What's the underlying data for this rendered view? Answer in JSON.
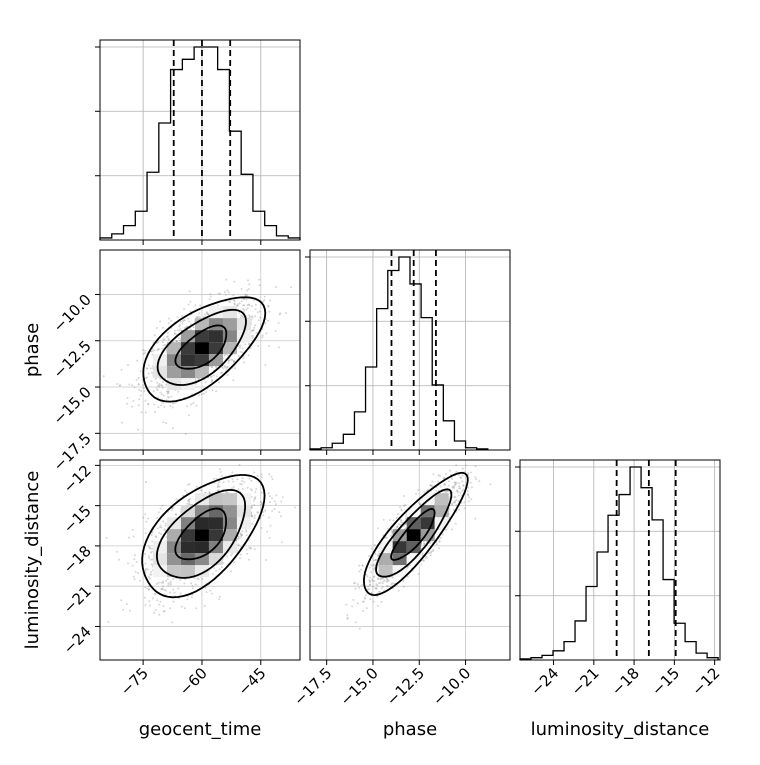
{
  "chart_data": {
    "type": "corner",
    "parameters": [
      "geocent_time",
      "phase",
      "luminosity_distance"
    ],
    "axis_labels": {
      "geocent_time": "geocent_time",
      "phase": "phase",
      "luminosity_distance": "luminosity_distance"
    },
    "ranges": {
      "geocent_time": [
        -86,
        -35
      ],
      "phase": [
        -18.4,
        -7.6
      ],
      "luminosity_distance": [
        -26.5,
        -11.6
      ]
    },
    "ticks": {
      "geocent_time": {
        "values": [
          -75,
          -60,
          -45
        ],
        "labels": [
          "−75",
          "−60",
          "−45"
        ]
      },
      "phase_x": {
        "values": [
          -17.5,
          -15.0,
          -12.5,
          -10.0
        ],
        "labels": [
          "−17.5",
          "−15.0",
          "−12.5",
          "−10.0"
        ]
      },
      "phase_y": {
        "values": [
          -10.0,
          -12.5,
          -15.0,
          -17.5
        ],
        "labels": [
          "−10.0",
          "−12.5",
          "−15.0",
          "−17.5"
        ]
      },
      "luminosity_distance": {
        "values": [
          -24,
          -21,
          -18,
          -15,
          -12
        ],
        "labels": [
          "−24",
          "−21",
          "−18",
          "−15",
          "−12"
        ]
      }
    },
    "quantiles": {
      "geocent_time": [
        -67.2,
        -60.0,
        -52.8
      ],
      "phase": [
        -14.0,
        -12.8,
        -11.6
      ],
      "luminosity_distance": [
        -19.3,
        -16.9,
        -14.9
      ]
    },
    "histograms": {
      "geocent_time": {
        "counts": [
          1,
          3,
          7,
          14,
          33,
          57,
          83,
          88,
          94,
          94,
          83,
          53,
          32,
          14,
          7,
          2,
          1
        ],
        "start": -86,
        "bin_width": 3
      },
      "phase": {
        "counts": [
          0.5,
          1,
          3,
          7,
          17,
          37,
          63,
          80,
          86,
          74,
          59,
          29,
          13,
          4,
          1,
          0.5
        ],
        "start": -18.4,
        "bin_width": 0.6
      },
      "luminosity_distance": {
        "counts": [
          0.5,
          1,
          2,
          4,
          8,
          17,
          32,
          47,
          63,
          72,
          84,
          75,
          61,
          35,
          16,
          8,
          3,
          1
        ],
        "start": -26.5,
        "bin_width": 0.82
      }
    },
    "panels_2d": [
      {
        "x": "geocent_time",
        "y": "phase",
        "center": [
          -60,
          -12.9
        ],
        "sd": [
          7.2,
          1.3
        ],
        "rho": 0.6
      },
      {
        "x": "geocent_time",
        "y": "luminosity_distance",
        "center": [
          -60,
          -17.2
        ],
        "sd": [
          7.2,
          2.1
        ],
        "rho": 0.55
      },
      {
        "x": "phase",
        "y": "luminosity_distance",
        "center": [
          -12.8,
          -17.2
        ],
        "sd": [
          1.3,
          2.1
        ],
        "rho": 0.85
      }
    ],
    "grid": true
  }
}
